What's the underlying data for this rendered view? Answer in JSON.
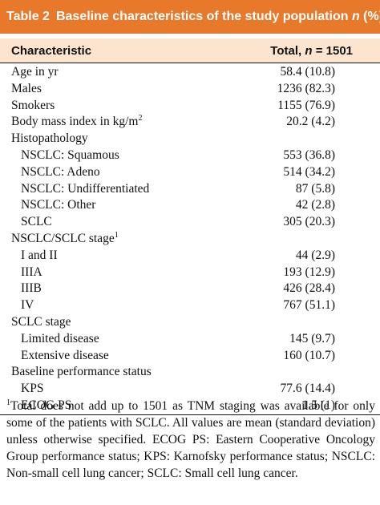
{
  "header": {
    "label": "Table 2",
    "text": "Baseline characteristics of the study population",
    "italic": "n",
    "suffix": "(%)"
  },
  "table": {
    "columns": [
      "Characteristic",
      {
        "text": "Total,",
        "italic": "n",
        "suffix": "= 1501"
      }
    ],
    "rows": [
      {
        "label": "Age in yr",
        "value": "58.4 (10.8)"
      },
      {
        "label": "Males",
        "value": "1236 (82.3)"
      },
      {
        "label": "Smokers",
        "value": "1155 (76.9)"
      },
      {
        "label": "Body mass index in kg/m",
        "sup": "2",
        "value": "20.2 (4.2)"
      },
      {
        "label": "Histopathology",
        "rows": [
          {
            "label": "NSCLC: Squamous",
            "value": "553 (36.8)"
          },
          {
            "label": "NSCLC: Adeno",
            "value": "514 (34.2)"
          },
          {
            "label": "NSCLC: Undifferentiated",
            "value": "87 (5.8)"
          },
          {
            "label": "NSCLC: Other",
            "value": "42 (2.8)"
          },
          {
            "label": "SCLC",
            "value": "305 (20.3)"
          }
        ]
      },
      {
        "label": "NSCLC/SCLC stage",
        "sup": "1",
        "rows": [
          {
            "label": "I and II",
            "value": "44 (2.9)"
          },
          {
            "label": "IIIA",
            "value": "193 (12.9)"
          },
          {
            "label": "IIIB",
            "value": "426 (28.4)"
          },
          {
            "label": "IV",
            "value": "767 (51.1)"
          }
        ]
      },
      {
        "label": "SCLC stage",
        "rows": [
          {
            "label": "Limited disease",
            "value": "145 (9.7)"
          },
          {
            "label": "Extensive disease",
            "value": "160 (10.7)"
          }
        ]
      },
      {
        "label": "Baseline performance status",
        "rows": [
          {
            "label": "KPS",
            "value": "77.6 (14.4)"
          },
          {
            "label": "ECOG PS",
            "value": "1.5 (1)"
          }
        ]
      }
    ]
  },
  "footnote": {
    "sup": "1",
    "text": "Total does not add up to 1501 as TNM staging was available for only some of the patients with SCLC. All values are mean (standard deviation) unless otherwise specified. ECOG PS: Eastern Cooperative Oncology Group performance status; KPS: Karnofsky performance status; NSCLC: Non-small cell lung cancer; SCLC: Small cell lung cancer."
  }
}
